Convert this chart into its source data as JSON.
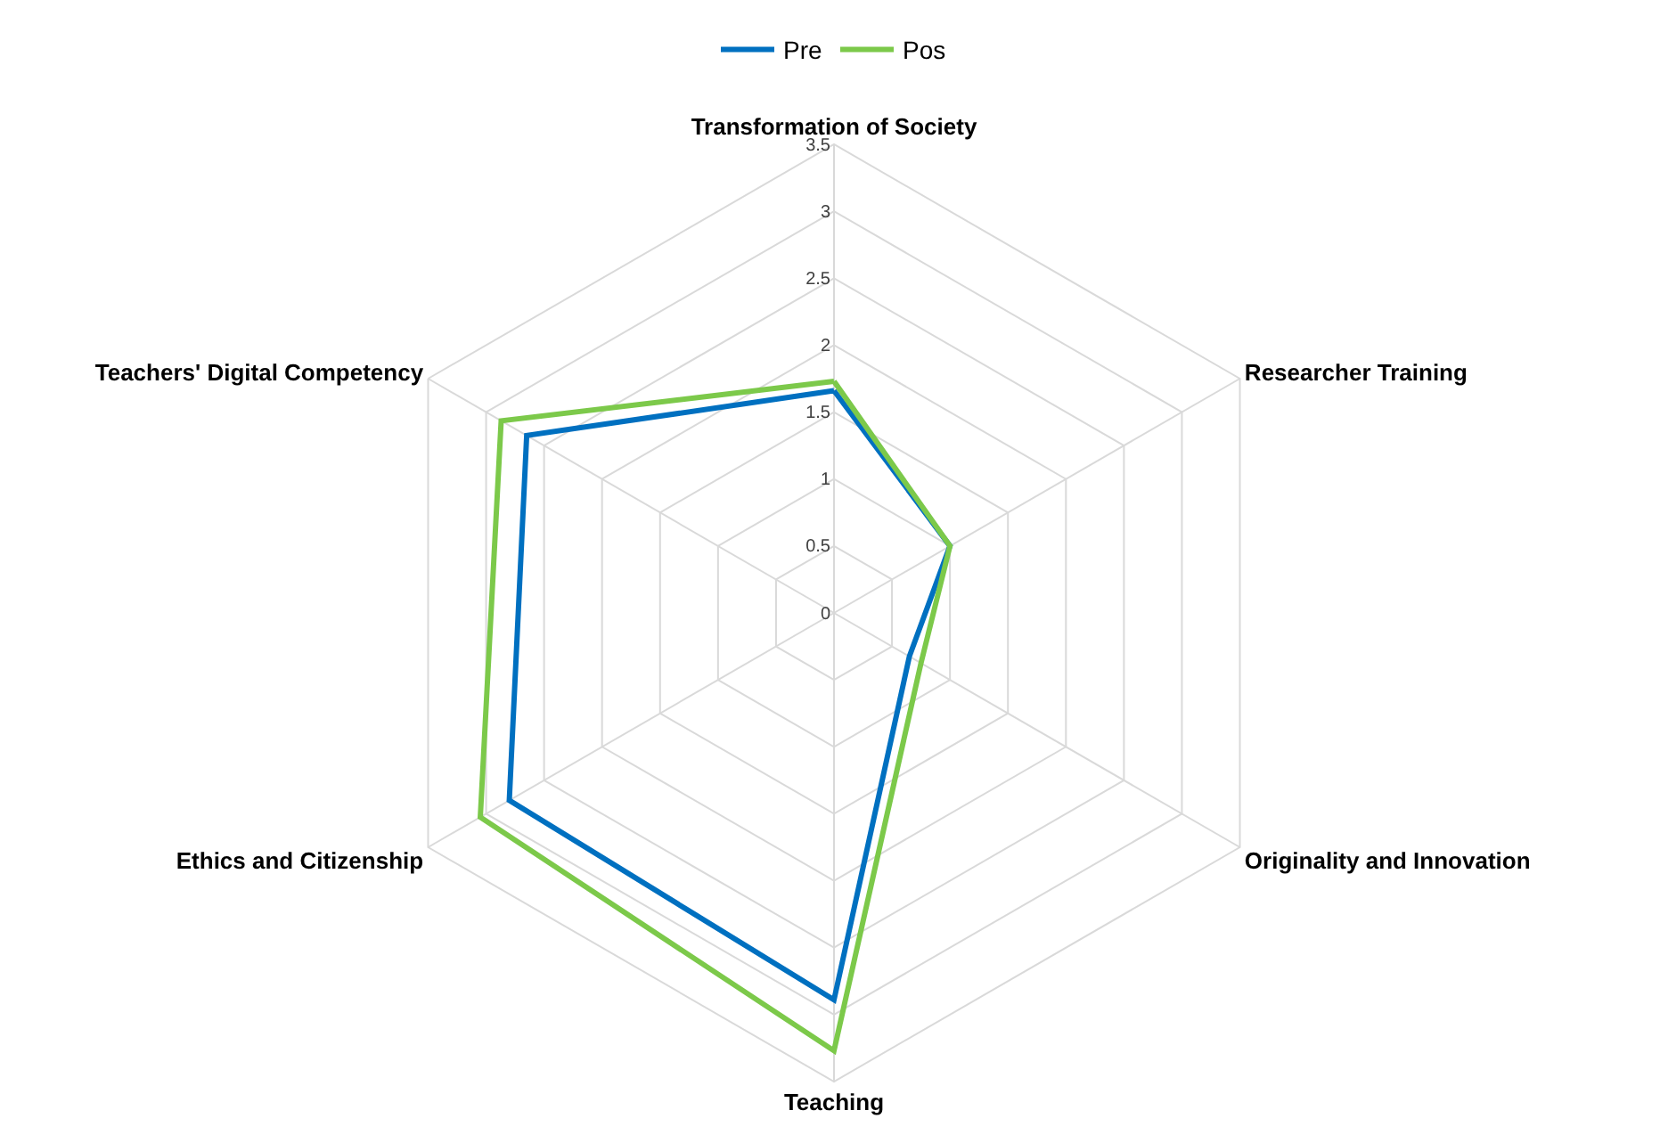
{
  "chart_data": {
    "type": "radar",
    "categories": [
      "Transformation of Society",
      "Researcher Training",
      "Originality and Innovation",
      "Teaching",
      "Ethics and Citizenship",
      "Teachers' Digital Competency"
    ],
    "series": [
      {
        "name": "Pre",
        "color": "#0070c0",
        "values": [
          1.66,
          1.0,
          0.65,
          2.89,
          2.8,
          2.65
        ]
      },
      {
        "name": "Pos",
        "color": "#7cc94a",
        "values": [
          1.73,
          1.0,
          0.75,
          3.27,
          3.05,
          2.87
        ]
      }
    ],
    "ylim": [
      0,
      3.5
    ],
    "yticks": [
      0,
      0.5,
      1,
      1.5,
      2,
      2.5,
      3,
      3.5
    ],
    "grid": true,
    "legend": "top",
    "marker": "none",
    "line_style": "solid"
  }
}
